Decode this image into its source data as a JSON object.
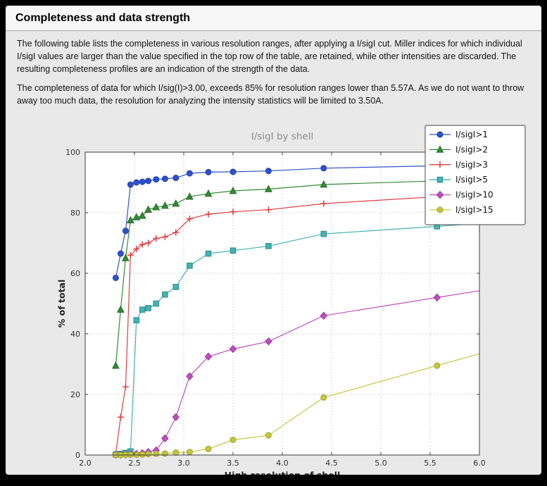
{
  "page": {
    "title": "Completeness and data strength",
    "paragraphs": [
      "The following table lists the completeness in various resolution ranges, after applying a I/sigI cut. Miller indices for which individual I/sigI values are larger than the value specified in the top row of the table, are retained, while other intensities are discarded. The resulting completeness profiles are an indication of the strength of the data.",
      "The completeness of data for which I/sig(I)>3.00, exceeds  85% for resolution ranges lower than 5.57A. As we do not want to throw away too much data, the resolution for analyzing the intensity statistics will be limited to 3.50A."
    ]
  },
  "chart_data": {
    "type": "line",
    "title": "I/sigI by shell",
    "xlabel": "High resolution of shell",
    "ylabel": "% of total",
    "xlim": [
      2.0,
      6.0
    ],
    "ylim": [
      0,
      100
    ],
    "grid": true,
    "legend_position": "top-right",
    "x_ticks": [
      2.0,
      2.5,
      3.0,
      3.5,
      4.0,
      4.5,
      5.0,
      5.5,
      6.0
    ],
    "x_tick_labels": [
      "2.0",
      "2.5",
      "3.0",
      "3.5",
      "4.0",
      "4.5",
      "5.0",
      "5.5",
      "6.0"
    ],
    "y_ticks": [
      0,
      20,
      40,
      60,
      80,
      100
    ],
    "y_tick_labels": [
      "0",
      "20",
      "40",
      "60",
      "80",
      "100"
    ],
    "x": [
      2.31,
      2.36,
      2.41,
      2.46,
      2.52,
      2.58,
      2.64,
      2.72,
      2.81,
      2.92,
      3.06,
      3.25,
      3.5,
      3.86,
      4.42,
      5.57
    ],
    "series": [
      {
        "name": "I/sigI>1",
        "color": "#2d52cb",
        "edge": "#1f3da8",
        "marker": "circle",
        "values": [
          58.5,
          66.5,
          74.0,
          89.3,
          90.0,
          90.2,
          90.5,
          91.0,
          91.2,
          91.5,
          93.0,
          93.4,
          93.5,
          93.8,
          94.7,
          95.5
        ]
      },
      {
        "name": "I/sigI>2",
        "color": "#338a33",
        "edge": "#256b27",
        "marker": "triangle-up",
        "values": [
          29.5,
          48.0,
          65.0,
          77.5,
          78.5,
          79.0,
          81.0,
          81.8,
          82.3,
          83.0,
          85.3,
          86.3,
          87.2,
          87.8,
          89.3,
          90.5
        ]
      },
      {
        "name": "I/sigI>3",
        "color": "#e03c3c",
        "edge": "#e03c3c",
        "marker": "plus",
        "values": [
          0.5,
          12.5,
          22.5,
          66.0,
          68.0,
          69.5,
          70.0,
          71.5,
          72.0,
          73.5,
          78.0,
          79.5,
          80.3,
          81.0,
          83.0,
          85.3
        ]
      },
      {
        "name": "I/sigI>5",
        "color": "#44b2b2",
        "edge": "#2a8c8c",
        "marker": "square",
        "values": [
          0.2,
          0.4,
          0.7,
          1.2,
          44.5,
          48.0,
          48.5,
          50.0,
          53.0,
          55.5,
          62.5,
          66.5,
          67.5,
          69.0,
          73.0,
          75.5
        ]
      },
      {
        "name": "I/sigI>10",
        "color": "#c04ec0",
        "edge": "#9a3a9a",
        "marker": "diamond",
        "values": [
          0.1,
          0.1,
          0.2,
          0.3,
          0.4,
          0.6,
          1.0,
          1.5,
          5.5,
          12.5,
          26.0,
          32.5,
          35.0,
          37.5,
          46.0,
          52.0
        ]
      },
      {
        "name": "I/sigI>15",
        "color": "#c6c63f",
        "edge": "#9f9f2e",
        "marker": "circle",
        "values": [
          0.0,
          0.0,
          0.1,
          0.1,
          0.1,
          0.2,
          0.3,
          0.4,
          0.5,
          0.8,
          1.0,
          2.0,
          5.0,
          6.5,
          19.0,
          29.5
        ]
      }
    ],
    "colors": {
      "plot_background": "#ffffff",
      "figure_background": "#e9e9e9",
      "grid": "#b0b0b0",
      "frame": "#3c3c3c",
      "title_text": "#8c8c8c",
      "tick_text": "#333333",
      "axis_label_text": "#222222",
      "legend_background": "#ffffff",
      "legend_border": "#444444"
    }
  }
}
